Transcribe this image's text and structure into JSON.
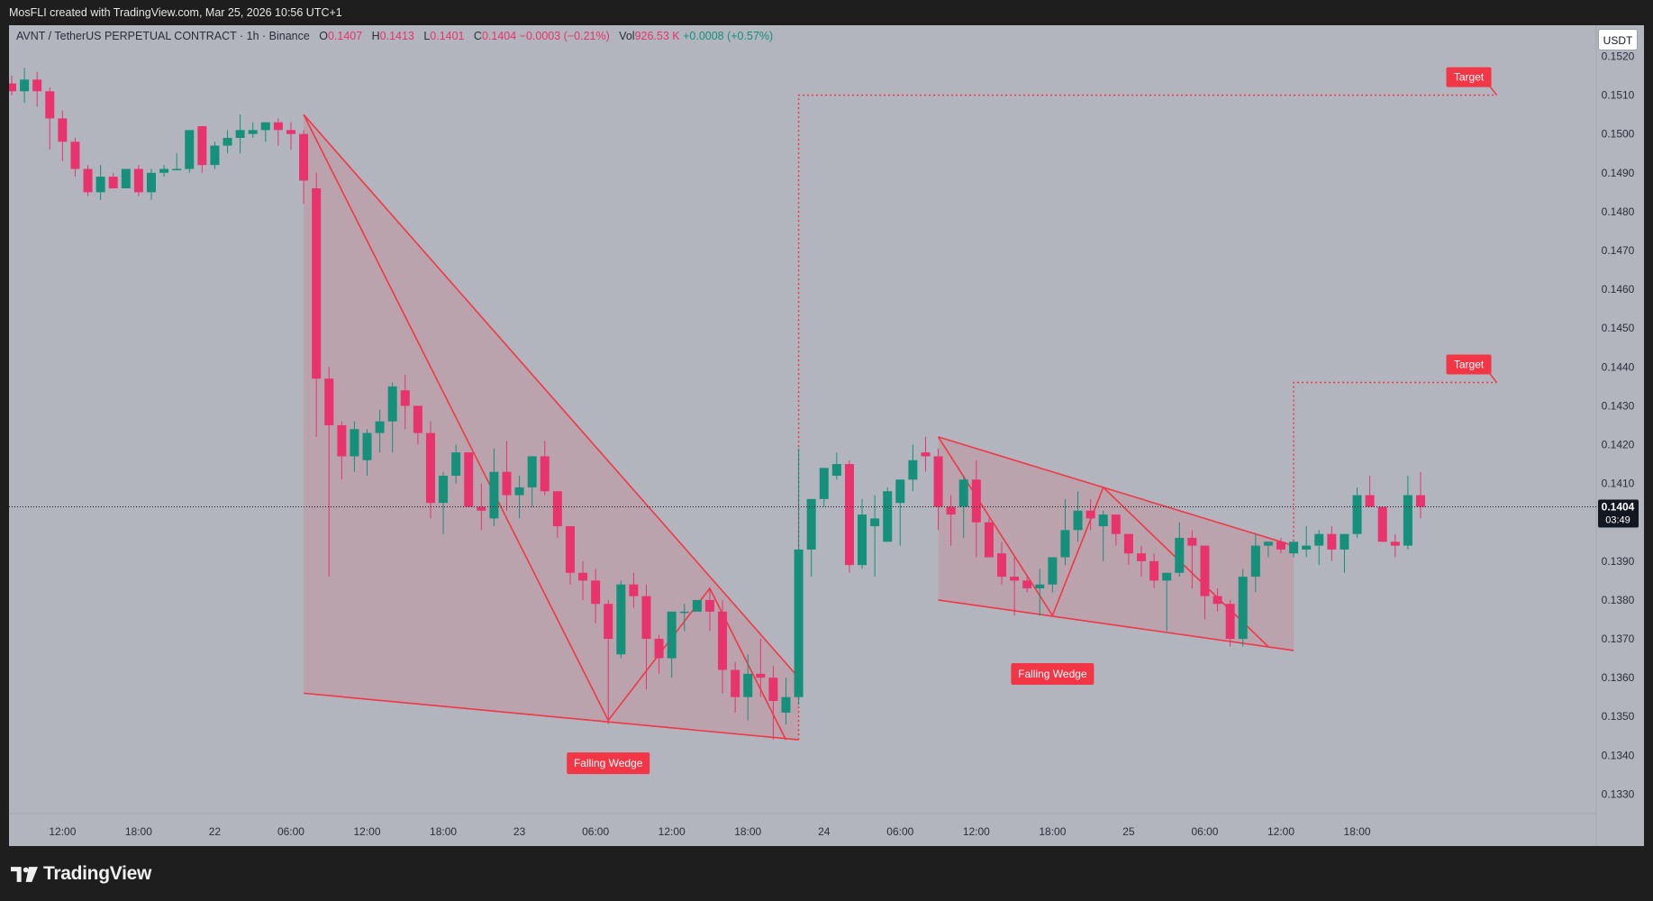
{
  "header": {
    "attribution": "MosFLI created with TradingView.com, Mar 25, 2026 10:56 UTC+1"
  },
  "legend": {
    "symbol": "AVNT / TetherUS PERPETUAL CONTRACT · 1h · Binance",
    "o_label": "O",
    "o_value": "0.1407",
    "h_label": "H",
    "h_value": "0.1413",
    "l_label": "L",
    "l_value": "0.1401",
    "c_label": "C",
    "c_value": "0.1404",
    "change": "−0.0003 (−0.21%)",
    "vol_label": "Vol",
    "vol_value": "926.53 K",
    "vol_change": "+0.0008 (+0.57%)"
  },
  "unit_badge": "USDT",
  "brand": "TradingView",
  "colors": {
    "up": "#14907b",
    "down": "#e8336d",
    "pattern": "#f23645",
    "background": "#b2b5be"
  },
  "chart_data": {
    "type": "candlestick",
    "interval": "1h",
    "y_axis": {
      "min": 0.1325,
      "max": 0.1528,
      "scale": "linear",
      "position": "right",
      "ticks": [
        "0.1330",
        "0.1340",
        "0.1350",
        "0.1360",
        "0.1370",
        "0.1380",
        "0.1390",
        "0.1400",
        "0.1410",
        "0.1420",
        "0.1430",
        "0.1440",
        "0.1450",
        "0.1460",
        "0.1470",
        "0.1480",
        "0.1490",
        "0.1500",
        "0.1510",
        "0.1520"
      ]
    },
    "x_axis": {
      "labels": [
        "12:00",
        "18:00",
        "22",
        "06:00",
        "12:00",
        "18:00",
        "23",
        "06:00",
        "12:00",
        "18:00",
        "24",
        "06:00",
        "12:00",
        "18:00",
        "25",
        "06:00",
        "12:00",
        "18:00"
      ]
    },
    "last_price": {
      "value": "0.1404",
      "countdown": "03:49"
    },
    "candles": [
      [
        0.1513,
        0.1515,
        0.151,
        0.1511
      ],
      [
        0.1511,
        0.1517,
        0.1508,
        0.1514
      ],
      [
        0.1514,
        0.1516,
        0.1507,
        0.1511
      ],
      [
        0.1511,
        0.1512,
        0.1496,
        0.1504
      ],
      [
        0.1504,
        0.1506,
        0.1493,
        0.1498
      ],
      [
        0.1498,
        0.1499,
        0.1489,
        0.1491
      ],
      [
        0.1491,
        0.1492,
        0.1484,
        0.1485
      ],
      [
        0.1485,
        0.1492,
        0.1483,
        0.1489
      ],
      [
        0.1489,
        0.149,
        0.1486,
        0.1486
      ],
      [
        0.1486,
        0.1491,
        0.1486,
        0.1491
      ],
      [
        0.1491,
        0.1492,
        0.1484,
        0.1485
      ],
      [
        0.1485,
        0.1491,
        0.1483,
        0.149
      ],
      [
        0.149,
        0.1492,
        0.1489,
        0.1491
      ],
      [
        0.1491,
        0.1495,
        0.1491,
        0.1491
      ],
      [
        0.1491,
        0.1501,
        0.149,
        0.1501
      ],
      [
        0.1502,
        0.1502,
        0.149,
        0.1492
      ],
      [
        0.1492,
        0.1498,
        0.1491,
        0.1497
      ],
      [
        0.1497,
        0.1501,
        0.1495,
        0.1499
      ],
      [
        0.1499,
        0.1505,
        0.1495,
        0.1501
      ],
      [
        0.15,
        0.1503,
        0.1499,
        0.1501
      ],
      [
        0.1501,
        0.1503,
        0.1498,
        0.1503
      ],
      [
        0.1503,
        0.1504,
        0.1497,
        0.1501
      ],
      [
        0.1501,
        0.1503,
        0.1496,
        0.15
      ],
      [
        0.15,
        0.1501,
        0.1482,
        0.1488
      ],
      [
        0.1486,
        0.149,
        0.1422,
        0.1437
      ],
      [
        0.1437,
        0.144,
        0.1386,
        0.1425
      ],
      [
        0.1425,
        0.1426,
        0.1411,
        0.1417
      ],
      [
        0.1417,
        0.1426,
        0.1413,
        0.1424
      ],
      [
        0.1416,
        0.1424,
        0.1412,
        0.1423
      ],
      [
        0.1423,
        0.1429,
        0.1418,
        0.1426
      ],
      [
        0.1426,
        0.1436,
        0.1418,
        0.1435
      ],
      [
        0.1434,
        0.1438,
        0.1424,
        0.143
      ],
      [
        0.143,
        0.143,
        0.142,
        0.1423
      ],
      [
        0.1423,
        0.1426,
        0.1401,
        0.1405
      ],
      [
        0.1405,
        0.1413,
        0.1397,
        0.1412
      ],
      [
        0.1412,
        0.142,
        0.141,
        0.1418
      ],
      [
        0.1418,
        0.1418,
        0.1404,
        0.1404
      ],
      [
        0.1404,
        0.141,
        0.1398,
        0.1403
      ],
      [
        0.1401,
        0.1419,
        0.1399,
        0.1413
      ],
      [
        0.1413,
        0.1421,
        0.1403,
        0.1407
      ],
      [
        0.1407,
        0.1412,
        0.1401,
        0.1409
      ],
      [
        0.1409,
        0.1416,
        0.1404,
        0.1417
      ],
      [
        0.1417,
        0.1421,
        0.1407,
        0.1408
      ],
      [
        0.1408,
        0.1408,
        0.1396,
        0.1399
      ],
      [
        0.1399,
        0.1399,
        0.1384,
        0.1387
      ],
      [
        0.1387,
        0.139,
        0.138,
        0.1385
      ],
      [
        0.1385,
        0.1388,
        0.1374,
        0.1379
      ],
      [
        0.1379,
        0.138,
        0.1348,
        0.137
      ],
      [
        0.1366,
        0.1385,
        0.1365,
        0.1384
      ],
      [
        0.1384,
        0.1387,
        0.1378,
        0.1381
      ],
      [
        0.1381,
        0.1384,
        0.1357,
        0.137
      ],
      [
        0.137,
        0.1371,
        0.1361,
        0.1365
      ],
      [
        0.1365,
        0.1377,
        0.136,
        0.1377
      ],
      [
        0.1377,
        0.1379,
        0.1372,
        0.1377
      ],
      [
        0.1377,
        0.138,
        0.1378,
        0.138
      ],
      [
        0.138,
        0.1383,
        0.1372,
        0.1377
      ],
      [
        0.1377,
        0.138,
        0.1356,
        0.1362
      ],
      [
        0.1362,
        0.1364,
        0.1351,
        0.1355
      ],
      [
        0.1355,
        0.1366,
        0.1349,
        0.1361
      ],
      [
        0.1361,
        0.137,
        0.1355,
        0.136
      ],
      [
        0.136,
        0.1363,
        0.1344,
        0.1354
      ],
      [
        0.1351,
        0.136,
        0.1348,
        0.1355
      ],
      [
        0.1355,
        0.1419,
        0.1353,
        0.1393
      ],
      [
        0.1393,
        0.1406,
        0.1386,
        0.1406
      ],
      [
        0.1406,
        0.1414,
        0.1404,
        0.1414
      ],
      [
        0.1412,
        0.1418,
        0.1411,
        0.1415
      ],
      [
        0.1415,
        0.1416,
        0.1387,
        0.1389
      ],
      [
        0.1389,
        0.1406,
        0.1388,
        0.1402
      ],
      [
        0.1399,
        0.1407,
        0.1386,
        0.1401
      ],
      [
        0.1395,
        0.1409,
        0.1395,
        0.1408
      ],
      [
        0.1405,
        0.1411,
        0.1394,
        0.1411
      ],
      [
        0.1411,
        0.142,
        0.1408,
        0.1416
      ],
      [
        0.1418,
        0.1422,
        0.1413,
        0.1417
      ],
      [
        0.1417,
        0.1419,
        0.1398,
        0.1404
      ],
      [
        0.1404,
        0.1407,
        0.1394,
        0.1402
      ],
      [
        0.1404,
        0.1412,
        0.1396,
        0.1411
      ],
      [
        0.1411,
        0.1416,
        0.1391,
        0.14
      ],
      [
        0.14,
        0.1401,
        0.1392,
        0.1391
      ],
      [
        0.1392,
        0.1395,
        0.1384,
        0.1386
      ],
      [
        0.1386,
        0.1391,
        0.1376,
        0.1385
      ],
      [
        0.1385,
        0.1386,
        0.1382,
        0.1383
      ],
      [
        0.1383,
        0.1388,
        0.1376,
        0.1384
      ],
      [
        0.1384,
        0.1391,
        0.1382,
        0.1391
      ],
      [
        0.1391,
        0.1406,
        0.1389,
        0.1398
      ],
      [
        0.1398,
        0.1408,
        0.1395,
        0.1403
      ],
      [
        0.1403,
        0.1406,
        0.1398,
        0.1401
      ],
      [
        0.1399,
        0.1403,
        0.139,
        0.1402
      ],
      [
        0.1402,
        0.1402,
        0.1394,
        0.1397
      ],
      [
        0.1397,
        0.1397,
        0.1389,
        0.1392
      ],
      [
        0.1392,
        0.1394,
        0.1386,
        0.139
      ],
      [
        0.139,
        0.1392,
        0.1383,
        0.1385
      ],
      [
        0.1385,
        0.1387,
        0.1372,
        0.1387
      ],
      [
        0.1387,
        0.14,
        0.1386,
        0.1396
      ],
      [
        0.1396,
        0.1398,
        0.1383,
        0.1394
      ],
      [
        0.1394,
        0.1394,
        0.1375,
        0.1381
      ],
      [
        0.1381,
        0.1383,
        0.1377,
        0.1379
      ],
      [
        0.1379,
        0.138,
        0.1368,
        0.137
      ],
      [
        0.137,
        0.1388,
        0.1368,
        0.1386
      ],
      [
        0.1386,
        0.1397,
        0.1382,
        0.1394
      ],
      [
        0.1394,
        0.1395,
        0.1391,
        0.1395
      ],
      [
        0.1395,
        0.1396,
        0.1392,
        0.1393
      ],
      [
        0.1392,
        0.1395,
        0.1391,
        0.1395
      ],
      [
        0.1393,
        0.1399,
        0.1391,
        0.1394
      ],
      [
        0.1394,
        0.1398,
        0.1389,
        0.1397
      ],
      [
        0.1397,
        0.1399,
        0.139,
        0.1393
      ],
      [
        0.1393,
        0.1395,
        0.1387,
        0.1397
      ],
      [
        0.1397,
        0.1409,
        0.1396,
        0.1407
      ],
      [
        0.1407,
        0.1412,
        0.1404,
        0.1404
      ],
      [
        0.1404,
        0.1404,
        0.1395,
        0.1395
      ],
      [
        0.1395,
        0.1397,
        0.1391,
        0.1394
      ],
      [
        0.1394,
        0.1412,
        0.1393,
        0.1407
      ],
      [
        0.1407,
        0.1413,
        0.1401,
        0.1404
      ]
    ],
    "annotations": [
      {
        "type": "falling-wedge",
        "label": "Falling Wedge",
        "start_bar": 23,
        "end_bar": 62,
        "upper": [
          [
            23,
            0.1505
          ],
          [
            62,
            0.136
          ]
        ],
        "lower": [
          [
            23,
            0.1356
          ],
          [
            62,
            0.1344
          ]
        ],
        "zigzag": [
          [
            23,
            0.1505
          ],
          [
            47,
            0.1349
          ],
          [
            55,
            0.1383
          ],
          [
            61,
            0.1344
          ]
        ]
      },
      {
        "type": "target",
        "label": "Target",
        "value": 0.151,
        "from_bar": 62,
        "to_bar": 117,
        "base": 0.1344
      },
      {
        "type": "falling-wedge",
        "label": "Falling Wedge",
        "start_bar": 73,
        "end_bar": 101,
        "upper": [
          [
            73,
            0.1422
          ],
          [
            101,
            0.1394
          ]
        ],
        "lower": [
          [
            73,
            0.138
          ],
          [
            101,
            0.1367
          ]
        ],
        "zigzag": [
          [
            73,
            0.1422
          ],
          [
            82,
            0.1376
          ],
          [
            86,
            0.1409
          ],
          [
            99,
            0.1368
          ]
        ]
      },
      {
        "type": "target",
        "label": "Target",
        "value": 0.1436,
        "from_bar": 101,
        "to_bar": 117,
        "base": 0.1394
      }
    ]
  }
}
